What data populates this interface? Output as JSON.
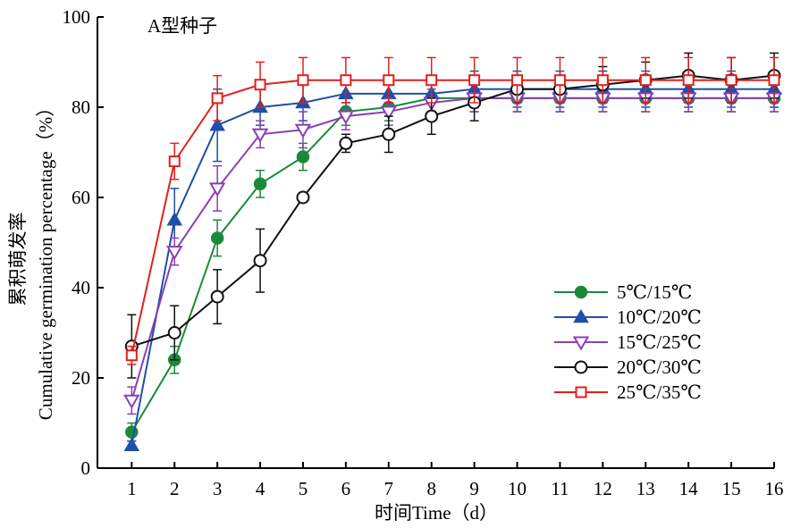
{
  "chart_data": {
    "type": "line",
    "title": "A型种子",
    "xlabel": "时间Time（d）",
    "ylabel_cn": "累积萌发率",
    "ylabel_en": "Cumulative germination percentage（%）",
    "xlim": [
      0.2,
      16
    ],
    "ylim": [
      0,
      100
    ],
    "x_ticks": [
      1,
      2,
      3,
      4,
      5,
      6,
      7,
      8,
      9,
      10,
      11,
      12,
      13,
      14,
      15,
      16
    ],
    "y_ticks": [
      0,
      20,
      40,
      60,
      80,
      100
    ],
    "grid": false,
    "legend_position": "right-center",
    "x": [
      1,
      2,
      3,
      4,
      5,
      6,
      7,
      8,
      9,
      10,
      11,
      12,
      13,
      14,
      15,
      16
    ],
    "series": [
      {
        "name": "5℃/15℃",
        "color": "#1a8a3a",
        "marker": "circle-filled",
        "values": [
          8,
          24,
          51,
          63,
          69,
          79,
          80,
          82,
          82,
          82,
          82,
          82,
          82,
          82,
          82,
          82
        ],
        "errors": [
          2,
          3,
          4,
          3,
          3,
          3,
          3,
          3,
          3,
          3,
          3,
          3,
          3,
          3,
          3,
          3
        ]
      },
      {
        "name": "10℃/20℃",
        "color": "#1f4fa8",
        "marker": "triangle-up-filled",
        "values": [
          5,
          55,
          76,
          80,
          81,
          83,
          83,
          83,
          84,
          84,
          84,
          84,
          84,
          84,
          84,
          84
        ],
        "errors": [
          1,
          7,
          8,
          4,
          4,
          4,
          4,
          4,
          4,
          4,
          4,
          4,
          4,
          4,
          4,
          4
        ]
      },
      {
        "name": "15℃/25℃",
        "color": "#8a3fb5",
        "marker": "triangle-down-open",
        "values": [
          15,
          48,
          62,
          74,
          75,
          78,
          79,
          81,
          82,
          82,
          82,
          82,
          82,
          82,
          82,
          82
        ],
        "errors": [
          3,
          3,
          5,
          3,
          4,
          3,
          3,
          3,
          3,
          3,
          3,
          3,
          3,
          3,
          3,
          3
        ]
      },
      {
        "name": "20℃/30℃",
        "color": "#111111",
        "marker": "circle-open",
        "values": [
          27,
          30,
          38,
          46,
          60,
          72,
          74,
          78,
          81,
          84,
          84,
          85,
          86,
          87,
          86,
          87
        ],
        "errors": [
          7,
          6,
          6,
          7,
          1,
          2,
          4,
          4,
          4,
          3,
          3,
          4,
          4,
          5,
          5,
          5
        ]
      },
      {
        "name": "25℃/35℃",
        "color": "#e0211b",
        "marker": "square-open",
        "values": [
          25,
          68,
          82,
          85,
          86,
          86,
          86,
          86,
          86,
          86,
          86,
          86,
          86,
          86,
          86,
          86
        ],
        "errors": [
          2,
          4,
          5,
          5,
          5,
          5,
          5,
          5,
          5,
          5,
          5,
          5,
          5,
          5,
          5,
          5
        ]
      }
    ]
  }
}
